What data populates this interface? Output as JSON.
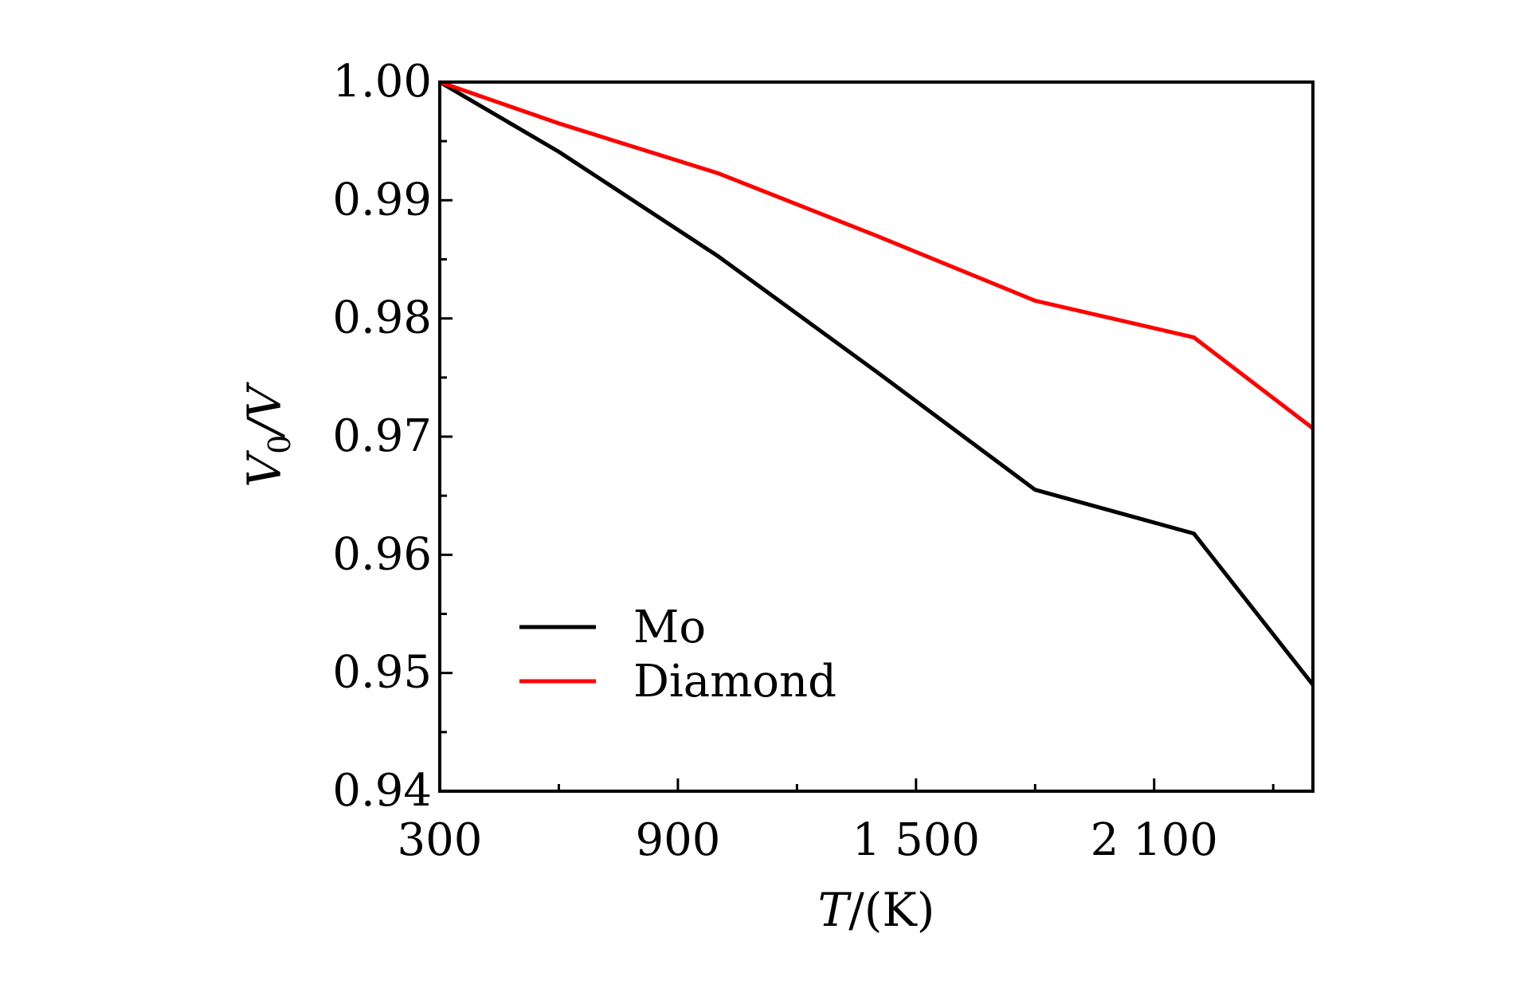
{
  "chart_data": {
    "type": "line",
    "title": "",
    "xlabel": {
      "italic": "T",
      "rest": "/(K)"
    },
    "ylabel": {
      "v": "V",
      "sub": "0",
      "rest": "/V"
    },
    "xlim": [
      300,
      2500
    ],
    "ylim": [
      0.94,
      1.0
    ],
    "xticks": [
      300,
      900,
      1500,
      2100
    ],
    "xtick_labels": [
      "300",
      "900",
      "1 500",
      "2 100"
    ],
    "x_minor_ticks": [
      600,
      1200,
      1800,
      2400
    ],
    "yticks": [
      0.94,
      0.95,
      0.96,
      0.97,
      0.98,
      0.99,
      1.0
    ],
    "ytick_labels": [
      "0.94",
      "0.95",
      "0.96",
      "0.97",
      "0.98",
      "0.99",
      "1.00"
    ],
    "y_minor_ticks": [
      0.945,
      0.955,
      0.965,
      0.975,
      0.985,
      0.995
    ],
    "legend_position": "bottom-left",
    "series": [
      {
        "name": "Mo",
        "color": "#000000",
        "x": [
          300,
          600,
          1000,
          1400,
          1800,
          2200,
          2500
        ],
        "y": [
          1.0,
          0.9941,
          0.9853,
          0.9755,
          0.9655,
          0.9618,
          0.949
        ]
      },
      {
        "name": "Diamond",
        "color": "#ff0000",
        "x": [
          300,
          600,
          1000,
          1400,
          1800,
          2200,
          2500
        ],
        "y": [
          1.0,
          0.9965,
          0.9923,
          0.987,
          0.9815,
          0.9784,
          0.9707
        ]
      }
    ]
  }
}
